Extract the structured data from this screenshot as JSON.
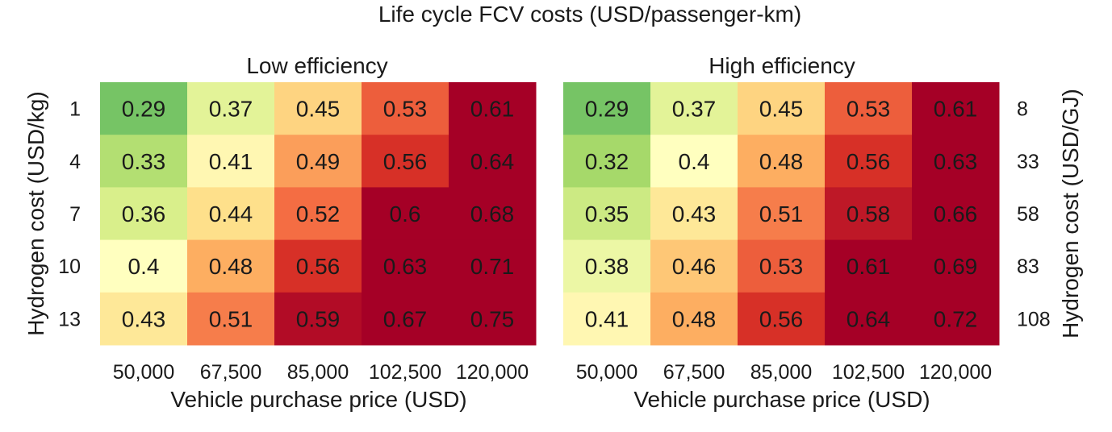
{
  "chart_data": [
    {
      "type": "heatmap",
      "suptitle": "Life cycle FCV costs (USD/passenger-km)",
      "title": "Low efficiency",
      "xlabel": "Vehicle purchase price (USD)",
      "ylabel": "Hydrogen cost (USD/kg)",
      "x_categories": [
        "50,000",
        "67,500",
        "85,000",
        "102,500",
        "120,000"
      ],
      "y_categories": [
        "1",
        "4",
        "7",
        "10",
        "13"
      ],
      "values": [
        [
          0.29,
          0.37,
          0.45,
          0.53,
          0.61
        ],
        [
          0.33,
          0.41,
          0.49,
          0.56,
          0.64
        ],
        [
          0.36,
          0.44,
          0.52,
          0.6,
          0.68
        ],
        [
          0.4,
          0.48,
          0.56,
          0.63,
          0.71
        ],
        [
          0.43,
          0.51,
          0.59,
          0.67,
          0.75
        ]
      ],
      "colormap": "RdYlGn_r",
      "color_range": [
        0.2,
        0.6
      ]
    },
    {
      "type": "heatmap",
      "title": "High efficiency",
      "xlabel": "Vehicle purchase price (USD)",
      "ylabel": "Hydrogen cost (USD/GJ)",
      "ylabel_position": "right",
      "x_categories": [
        "50,000",
        "67,500",
        "85,000",
        "102,500",
        "120,000"
      ],
      "y_categories": [
        "8",
        "33",
        "58",
        "83",
        "108"
      ],
      "values": [
        [
          0.29,
          0.37,
          0.45,
          0.53,
          0.61
        ],
        [
          0.32,
          0.4,
          0.48,
          0.56,
          0.63
        ],
        [
          0.35,
          0.43,
          0.51,
          0.58,
          0.66
        ],
        [
          0.38,
          0.46,
          0.53,
          0.61,
          0.69
        ],
        [
          0.41,
          0.48,
          0.56,
          0.64,
          0.72
        ]
      ],
      "colormap": "RdYlGn_r",
      "color_range": [
        0.2,
        0.6
      ]
    }
  ]
}
